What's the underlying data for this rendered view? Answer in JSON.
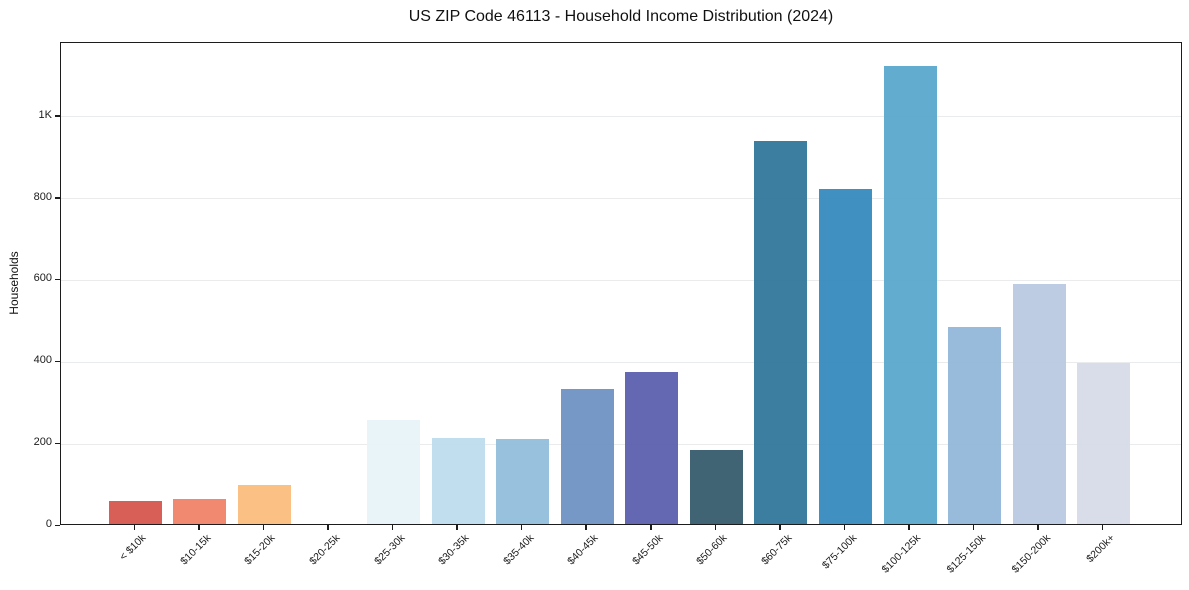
{
  "chart_data": {
    "type": "bar",
    "title": "US ZIP Code 46113 - Household Income Distribution (2024)",
    "xlabel": "",
    "ylabel": "Households",
    "ylim": [
      0,
      1180
    ],
    "grid": true,
    "legend_position": "none",
    "yticks": [
      {
        "value": 0,
        "label": "0"
      },
      {
        "value": 200,
        "label": "200"
      },
      {
        "value": 400,
        "label": "400"
      },
      {
        "value": 600,
        "label": "600"
      },
      {
        "value": 800,
        "label": "800"
      },
      {
        "value": 1000,
        "label": "1K"
      }
    ],
    "categories": [
      "< $10k",
      "$10-15k",
      "$15-20k",
      "$20-25k",
      "$25-30k",
      "$30-35k",
      "$35-40k",
      "$40-45k",
      "$45-50k",
      "$50-60k",
      "$60-75k",
      "$75-100k",
      "$100-125k",
      "$125-150k",
      "$150-200k",
      "$200k+"
    ],
    "values": [
      57,
      60,
      95,
      0,
      253,
      210,
      207,
      330,
      372,
      180,
      935,
      818,
      1120,
      481,
      586,
      393
    ],
    "bar_colors": [
      "#d5554d",
      "#ef8266",
      "#fbbd7c",
      null,
      "#e7f3f8",
      "#bcdcec",
      "#90bddb",
      "#6c92c4",
      "#5a5fae",
      "#345a6b",
      "#30769a",
      "#348abd",
      "#58a7cc",
      "#92b7d9",
      "#b9c9e1",
      "#d7dae8"
    ],
    "grid_color": "#e9ebec",
    "spine_color": "#1c1c1c"
  }
}
